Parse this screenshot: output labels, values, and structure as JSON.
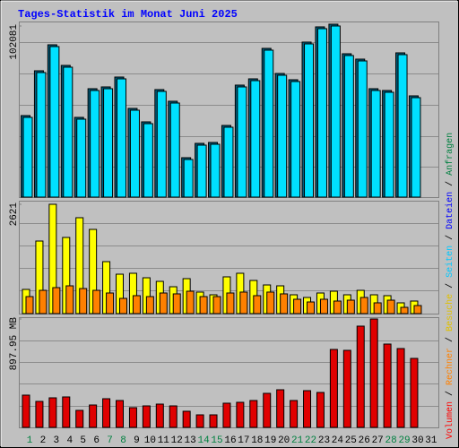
{
  "title": "Tages-Statistik im Monat Juni 2025",
  "legend_separator": " / ",
  "legend": [
    {
      "name": "Volumen",
      "color": "#ff0000"
    },
    {
      "name": "Rechner",
      "color": "#ff8000"
    },
    {
      "name": "Besuche",
      "color": "#e0c000"
    },
    {
      "name": "Seiten",
      "color": "#00c8ff"
    },
    {
      "name": "Dateien",
      "color": "#0000ff"
    },
    {
      "name": "Anfragen",
      "color": "#008040"
    }
  ],
  "chart_data": [
    {
      "type": "bar",
      "ylim": [
        0,
        102081
      ],
      "yticks": [
        102081
      ],
      "series": [
        {
          "color": "#00e0ff",
          "values": [
            47570,
            74296,
            89796,
            77503,
            46502,
            63606,
            64675,
            70554,
            51847,
            43829,
            63071,
            56123,
            22449,
            31001,
            31536,
            41691,
            65744,
            69485,
            87658,
            72692,
            68951,
            91400,
            100486,
            102081,
            84451,
            81244,
            63606,
            62537,
            84986,
            59330,
            null
          ]
        }
      ]
    },
    {
      "type": "bar",
      "ylim": [
        0,
        2621
      ],
      "yticks": [
        2621
      ],
      "series": [
        {
          "color": "#ffff00",
          "values": [
            580,
            1740,
            2621,
            1826,
            2299,
            2019,
            1246,
            945,
            967,
            859,
            773,
            644,
            838,
            516,
            451,
            881,
            967,
            795,
            687,
            666,
            451,
            387,
            494,
            537,
            451,
            558,
            451,
            430,
            258,
            301,
            null
          ]
        },
        {
          "color": "#ff8000",
          "values": [
            408,
            558,
            623,
            666,
            601,
            558,
            494,
            365,
            430,
            408,
            494,
            473,
            537,
            408,
            408,
            494,
            516,
            430,
            516,
            473,
            344,
            279,
            344,
            301,
            322,
            387,
            258,
            322,
            150,
            193,
            null
          ]
        }
      ]
    },
    {
      "type": "bar",
      "ylim": [
        0,
        897.95
      ],
      "yticks": [
        {
          "value": 897.95,
          "label": "897.95 MB"
        }
      ],
      "categories": [
        "1",
        "2",
        "3",
        "4",
        "5",
        "6",
        "7",
        "8",
        "9",
        "10",
        "11",
        "12",
        "13",
        "14",
        "15",
        "16",
        "17",
        "18",
        "19",
        "20",
        "21",
        "22",
        "23",
        "24",
        "25",
        "26",
        "27",
        "28",
        "29",
        "30",
        "31"
      ],
      "category_colors": [
        "#008040",
        "#000000",
        "#000000",
        "#000000",
        "#000000",
        "#000000",
        "#008040",
        "#008040",
        "#000000",
        "#000000",
        "#000000",
        "#000000",
        "#000000",
        "#008040",
        "#008040",
        "#000000",
        "#000000",
        "#000000",
        "#000000",
        "#000000",
        "#008040",
        "#008040",
        "#000000",
        "#000000",
        "#000000",
        "#000000",
        "#000000",
        "#008040",
        "#008040",
        "#000000",
        "#000000"
      ],
      "series": [
        {
          "color": "#e00000",
          "values": [
            267.2,
            215.2,
            244.9,
            252.3,
            141.0,
            185.5,
            237.5,
            222.6,
            163.3,
            178.1,
            192.9,
            178.1,
            133.6,
            103.9,
            103.9,
            200.4,
            207.8,
            222.6,
            282.0,
            311.7,
            222.6,
            304.3,
            289.4,
            645.6,
            638.2,
            838.6,
            897.95,
            690.2,
            653.0,
            571.4,
            null
          ]
        }
      ]
    }
  ]
}
